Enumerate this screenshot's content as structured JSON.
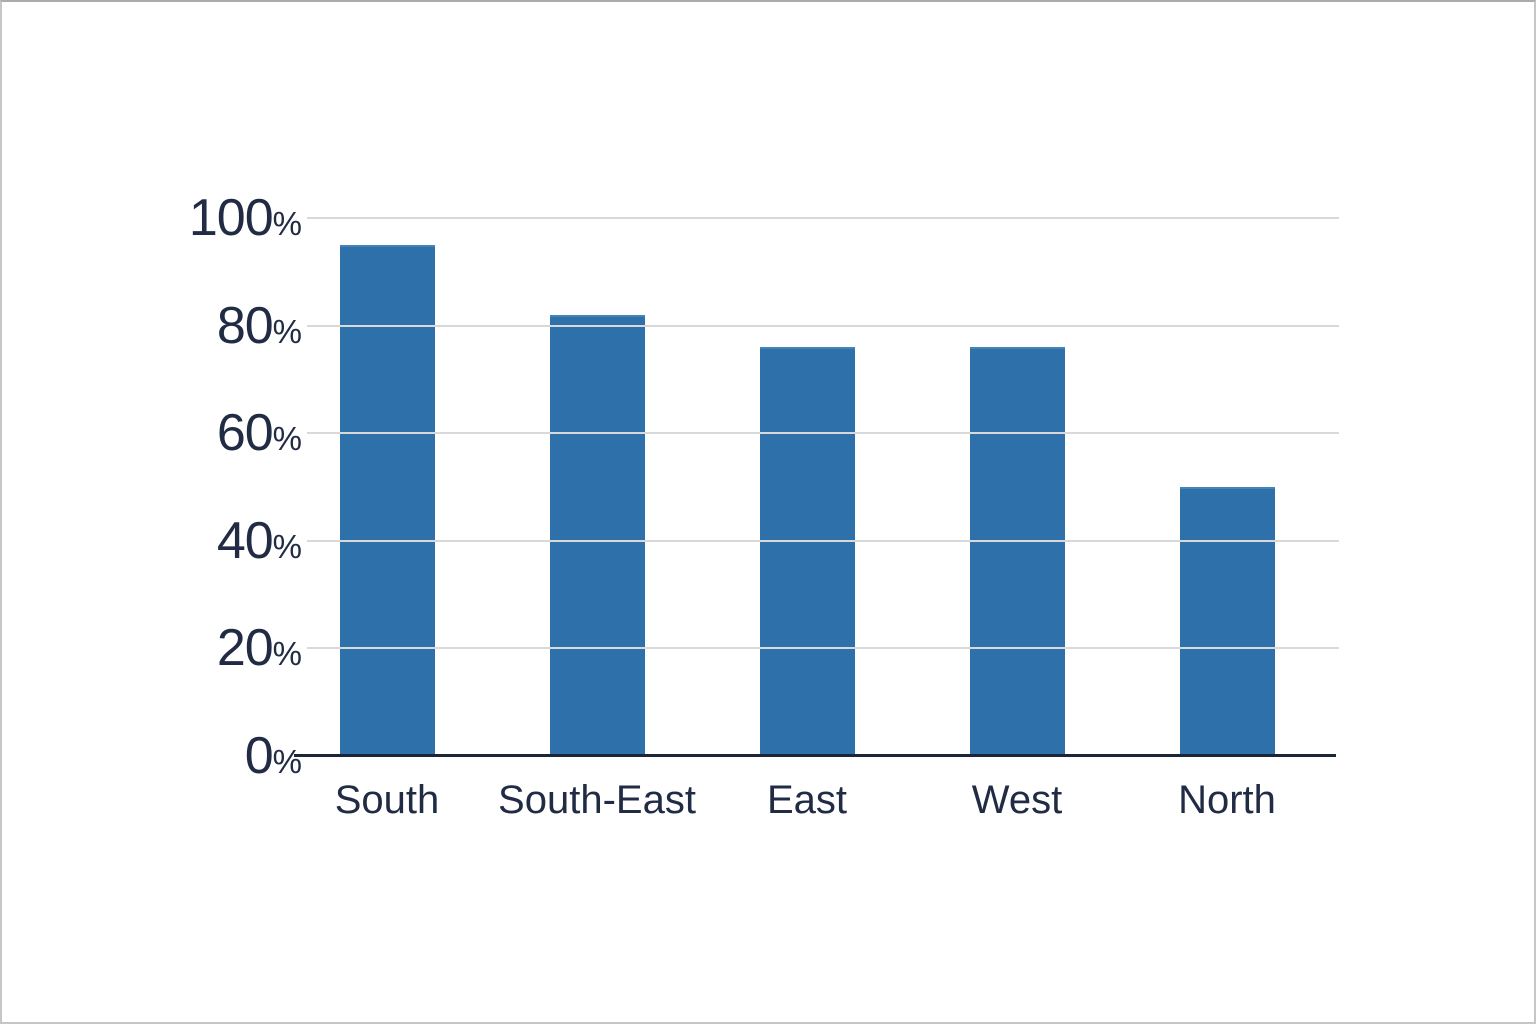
{
  "chart_data": {
    "type": "bar",
    "categories": [
      "South",
      "South-East",
      "East",
      "West",
      "North"
    ],
    "values": [
      95,
      82,
      76,
      76,
      50
    ],
    "title": "",
    "xlabel": "",
    "ylabel": "",
    "ylim": [
      0,
      100
    ],
    "y_ticks": [
      0,
      20,
      40,
      60,
      80,
      100
    ],
    "y_tick_suffix": "%",
    "grid": true,
    "legend": null,
    "colors": {
      "bar": "#2e71aa",
      "bar_top_highlight": "#4584b8",
      "axis_line": "#1c2638",
      "gridline": "#d9d9d9",
      "label_text": "#212c44",
      "background": "#ffffff",
      "frame_border": "#c6c6c6"
    }
  }
}
